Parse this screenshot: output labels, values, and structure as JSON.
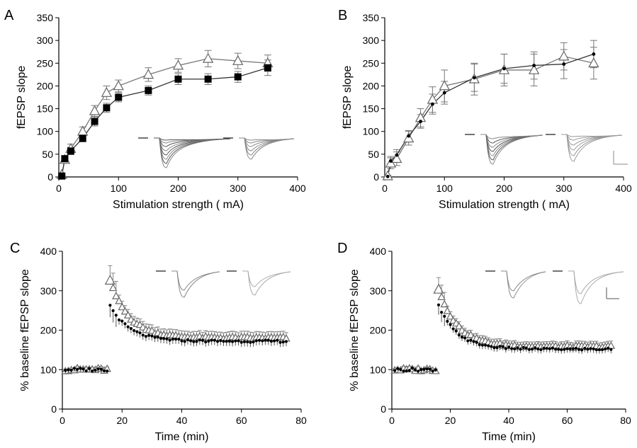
{
  "chart_data": [
    {
      "panel": "A",
      "type": "line",
      "xlabel": "Stimulation strength ( mA)",
      "ylabel": "fEPSP slope",
      "xlim": [
        0,
        400
      ],
      "ylim": [
        0,
        350
      ],
      "xticks": [
        0,
        100,
        200,
        300,
        400
      ],
      "yticks": [
        0,
        50,
        100,
        150,
        200,
        250,
        300,
        350
      ],
      "x": [
        5,
        10,
        20,
        40,
        60,
        80,
        100,
        150,
        200,
        250,
        300,
        350
      ],
      "series": [
        {
          "marker": "open-triangle",
          "values": [
            5,
            38,
            62,
            100,
            145,
            185,
            200,
            225,
            245,
            260,
            255,
            250
          ],
          "errors": [
            3,
            8,
            10,
            10,
            12,
            15,
            13,
            15,
            15,
            18,
            17,
            18
          ]
        },
        {
          "marker": "filled-square",
          "values": [
            2,
            40,
            57,
            85,
            122,
            152,
            175,
            190,
            215,
            215,
            220,
            240
          ],
          "errors": [
            2,
            7,
            8,
            8,
            10,
            10,
            10,
            10,
            12,
            12,
            12,
            17
          ]
        }
      ],
      "insets": 2
    },
    {
      "panel": "B",
      "type": "line",
      "xlabel": "Stimulation strength ( mA)",
      "ylabel": "fEPSP slope",
      "xlim": [
        0,
        400
      ],
      "ylim": [
        0,
        350
      ],
      "xticks": [
        0,
        100,
        200,
        300,
        400
      ],
      "yticks": [
        0,
        50,
        100,
        150,
        200,
        250,
        300,
        350
      ],
      "x": [
        5,
        10,
        20,
        40,
        60,
        80,
        100,
        150,
        200,
        250,
        300,
        350
      ],
      "series": [
        {
          "marker": "open-triangle",
          "values": [
            2,
            30,
            40,
            85,
            130,
            170,
            200,
            215,
            235,
            235,
            265,
            250
          ],
          "errors": [
            2,
            12,
            15,
            15,
            20,
            28,
            35,
            35,
            35,
            35,
            30,
            35
          ]
        },
        {
          "marker": "small-filled-dot",
          "values": [
            1,
            35,
            48,
            90,
            122,
            160,
            185,
            218,
            238,
            245,
            248,
            270
          ],
          "errors": [
            1,
            10,
            12,
            12,
            15,
            22,
            25,
            30,
            32,
            30,
            32,
            30
          ]
        }
      ],
      "insets": 2,
      "scale_bar": true
    },
    {
      "panel": "C",
      "type": "scatter",
      "xlabel": "Time (min)",
      "ylabel": "% baseline fEPSP slope",
      "xlim": [
        0,
        80
      ],
      "ylim": [
        0,
        400
      ],
      "xticks": [
        0,
        20,
        40,
        60,
        80
      ],
      "yticks": [
        0,
        100,
        200,
        300,
        400
      ],
      "baseline_x_range": [
        1,
        15
      ],
      "baseline_value": 100,
      "post_x_range": [
        16,
        75
      ],
      "series": [
        {
          "marker": "open-triangle",
          "first_value": 325,
          "decay_to": 180,
          "error": 15
        },
        {
          "marker": "small-filled-dot",
          "first_value": 262,
          "decay_to": 172,
          "error": 12
        }
      ],
      "insets": 2
    },
    {
      "panel": "D",
      "type": "scatter",
      "xlabel": "Time (min)",
      "ylabel": "% baseline fEPSP slope",
      "xlim": [
        0,
        80
      ],
      "ylim": [
        0,
        400
      ],
      "xticks": [
        0,
        20,
        40,
        60,
        80
      ],
      "yticks": [
        0,
        100,
        200,
        300,
        400
      ],
      "baseline_x_range": [
        1,
        15
      ],
      "baseline_value": 100,
      "post_x_range": [
        16,
        75
      ],
      "series": [
        {
          "marker": "open-triangle",
          "first_value": 305,
          "decay_to": 158,
          "error": 12
        },
        {
          "marker": "small-filled-dot",
          "first_value": 262,
          "decay_to": 152,
          "error": 10
        }
      ],
      "insets": 2,
      "scale_bar": true
    }
  ]
}
